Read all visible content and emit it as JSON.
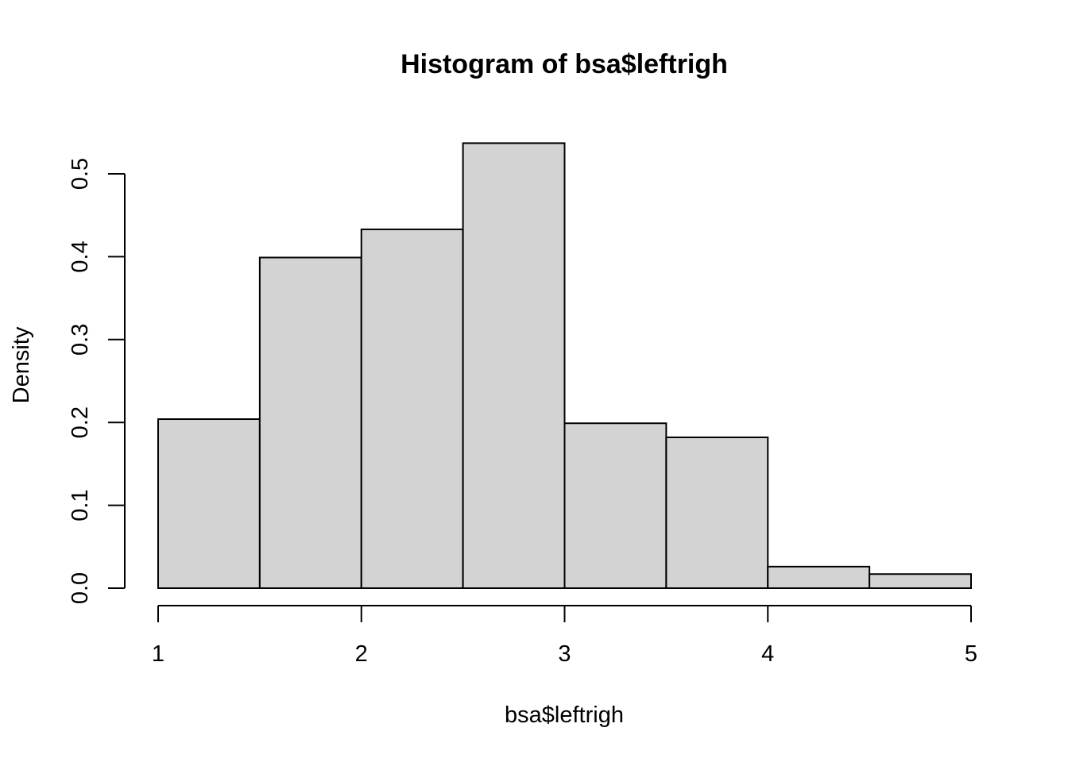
{
  "chart_data": {
    "type": "bar",
    "title": "Histogram of bsa$leftrigh",
    "xlabel": "bsa$leftrigh",
    "ylabel": "Density",
    "bins": [
      {
        "x0": 1.0,
        "x1": 1.5,
        "density": 0.204
      },
      {
        "x0": 1.5,
        "x1": 2.0,
        "density": 0.399
      },
      {
        "x0": 2.0,
        "x1": 2.5,
        "density": 0.433
      },
      {
        "x0": 2.5,
        "x1": 3.0,
        "density": 0.537
      },
      {
        "x0": 3.0,
        "x1": 3.5,
        "density": 0.199
      },
      {
        "x0": 3.5,
        "x1": 4.0,
        "density": 0.182
      },
      {
        "x0": 4.0,
        "x1": 4.5,
        "density": 0.026
      },
      {
        "x0": 4.5,
        "x1": 5.0,
        "density": 0.017
      }
    ],
    "xlim": [
      1,
      5
    ],
    "ylim": [
      0,
      0.5
    ],
    "x_ticks": [
      "1",
      "2",
      "3",
      "4",
      "5"
    ],
    "y_ticks": [
      "0.0",
      "0.1",
      "0.2",
      "0.3",
      "0.4",
      "0.5"
    ],
    "bar_fill": "#d3d3d3",
    "bar_stroke": "#000000",
    "grid": false,
    "legend": "none"
  }
}
